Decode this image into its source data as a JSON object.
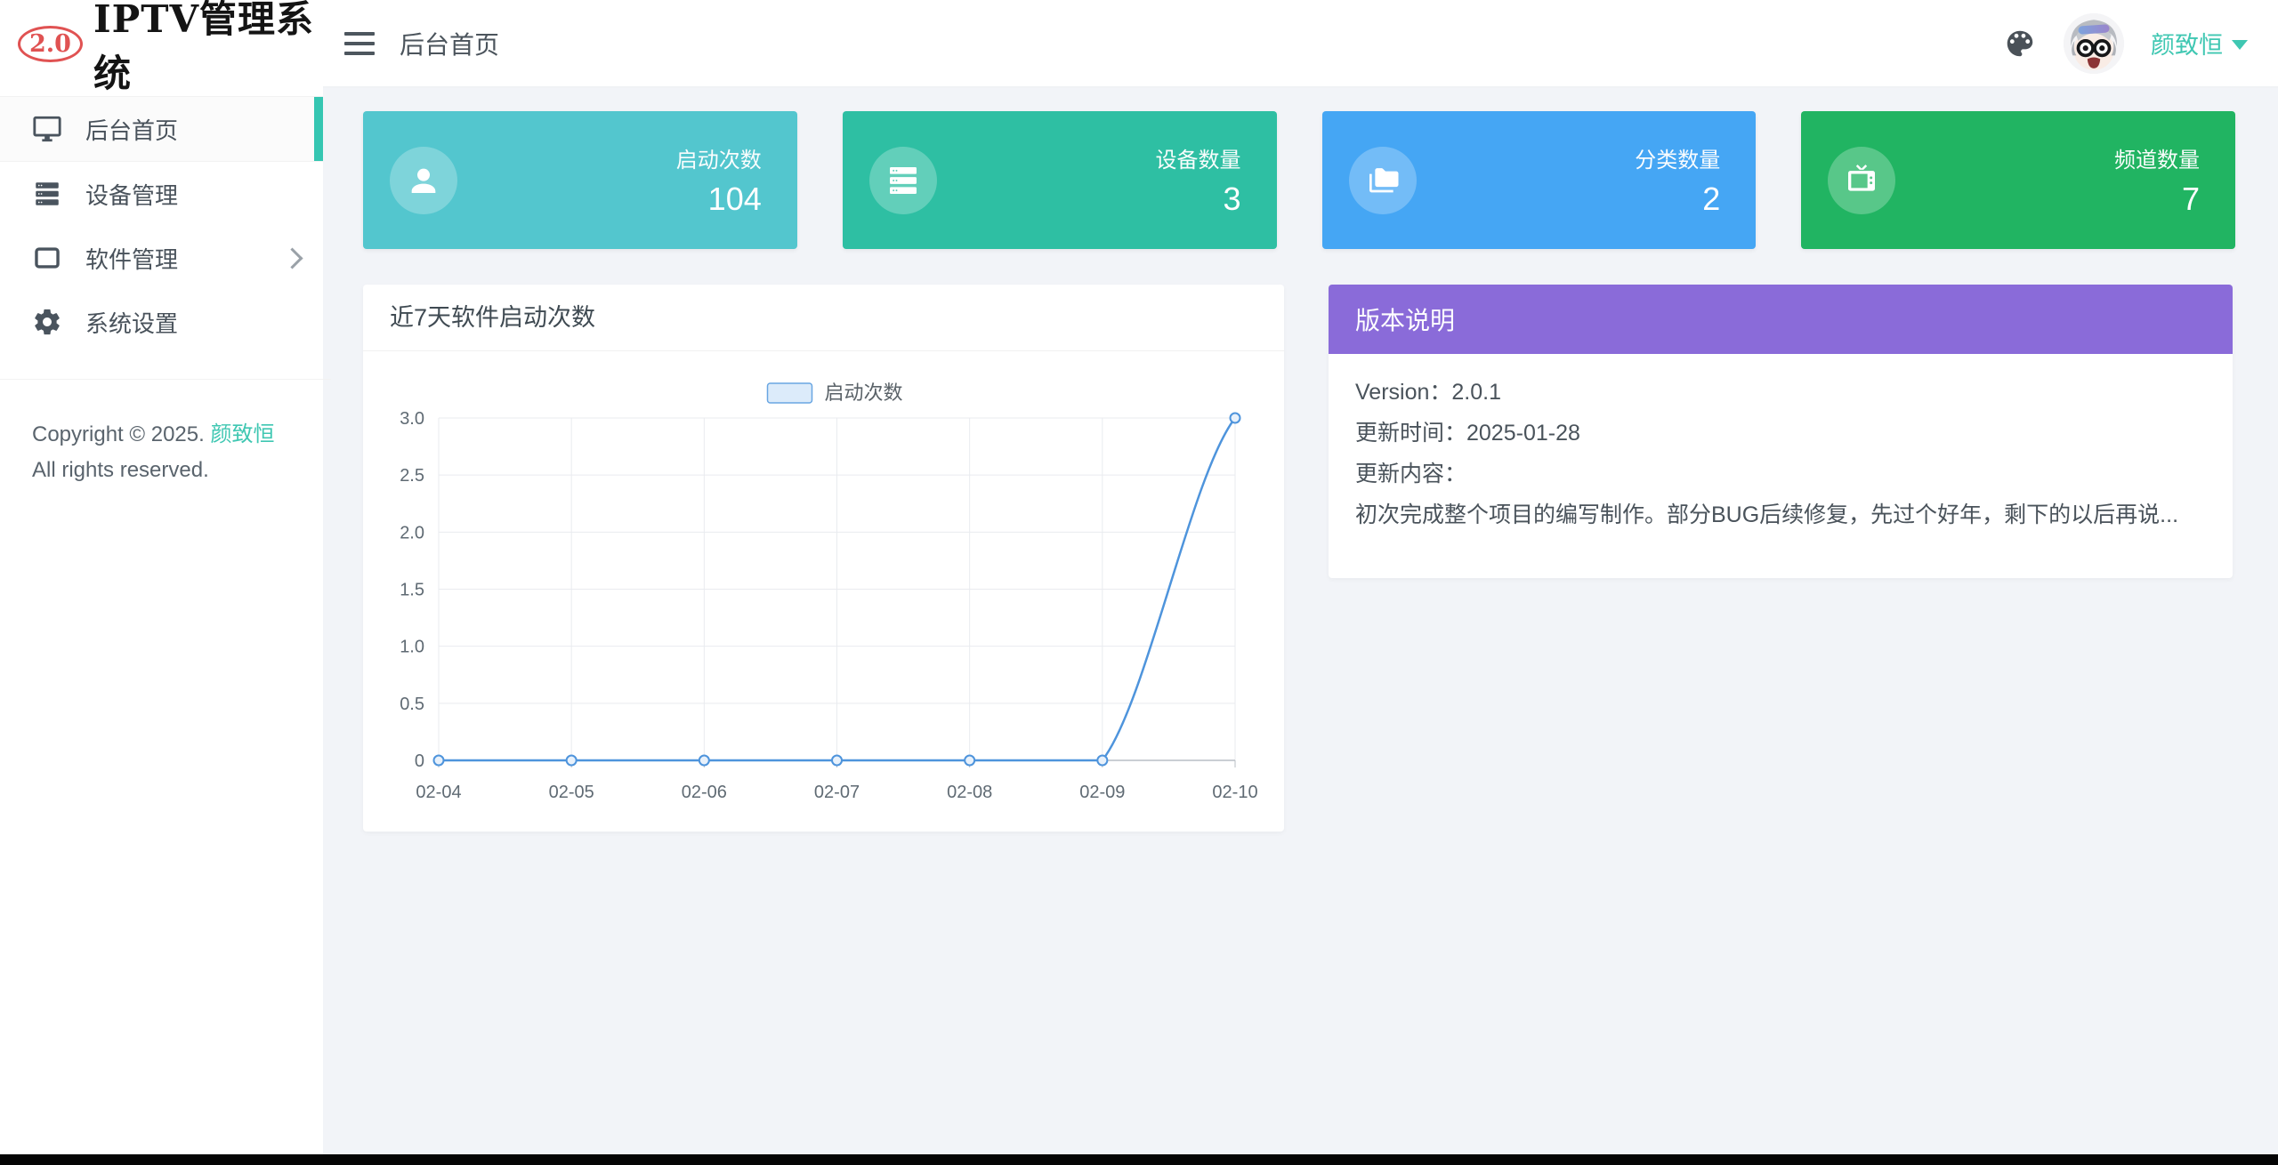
{
  "app": {
    "logo_badge": "2.0",
    "logo_title": "IPTV管理系统"
  },
  "topbar": {
    "breadcrumb": "后台首页",
    "username": "颜致恒"
  },
  "sidebar": {
    "items": [
      {
        "label": "后台首页",
        "icon": "monitor-icon",
        "active": true
      },
      {
        "label": "设备管理",
        "icon": "server-icon",
        "active": false
      },
      {
        "label": "软件管理",
        "icon": "window-icon",
        "active": false,
        "has_children": true
      },
      {
        "label": "系统设置",
        "icon": "gear-icon",
        "active": false
      }
    ],
    "copyright_prefix": "Copyright © 2025. ",
    "copyright_author": "颜致恒",
    "copyright_suffix": " All rights reserved."
  },
  "stat_cards": [
    {
      "label": "启动次数",
      "value": "104",
      "color": "#53c6ce",
      "icon": "user-icon"
    },
    {
      "label": "设备数量",
      "value": "3",
      "color": "#2ebfa3",
      "icon": "server-icon"
    },
    {
      "label": "分类数量",
      "value": "2",
      "color": "#45a6f4",
      "icon": "folders-icon"
    },
    {
      "label": "频道数量",
      "value": "7",
      "color": "#21b462",
      "icon": "tv-icon"
    }
  ],
  "chart_card": {
    "title": "近7天软件启动次数"
  },
  "chart_data": {
    "type": "line",
    "title": "近7天软件启动次数",
    "x": [
      "02-04",
      "02-05",
      "02-06",
      "02-07",
      "02-08",
      "02-09",
      "02-10"
    ],
    "series": [
      {
        "name": "启动次数",
        "values": [
          0,
          0,
          0,
          0,
          0,
          0,
          3
        ]
      }
    ],
    "ylim": [
      0,
      3
    ],
    "ytick_values": [
      0,
      0.5,
      1,
      1.5,
      2,
      2.5,
      3
    ],
    "ytick_labels": [
      "0",
      "0.5",
      "1.0",
      "1.5",
      "2.0",
      "2.5",
      "3.0"
    ],
    "grid": true,
    "smooth": true,
    "legend_position": "top-center",
    "line_color": "#4e94dc",
    "point_fill": "#e8f1fb",
    "legend_swatch_fill": "#dcebfa",
    "legend_swatch_border": "#69a6e2"
  },
  "version_card": {
    "title": "版本说明",
    "header_color": "#8a6bd9",
    "lines": [
      "Version：2.0.1",
      "更新时间：2025-01-28",
      "更新内容：",
      "初次完成整个项目的编写制作。部分BUG后续修复，先过个好年，剩下的以后再说..."
    ]
  },
  "colors": {
    "accent": "#3fc7b2",
    "sidebar_active_bar": "#35c6b2",
    "page_background": "#f2f4f8"
  }
}
